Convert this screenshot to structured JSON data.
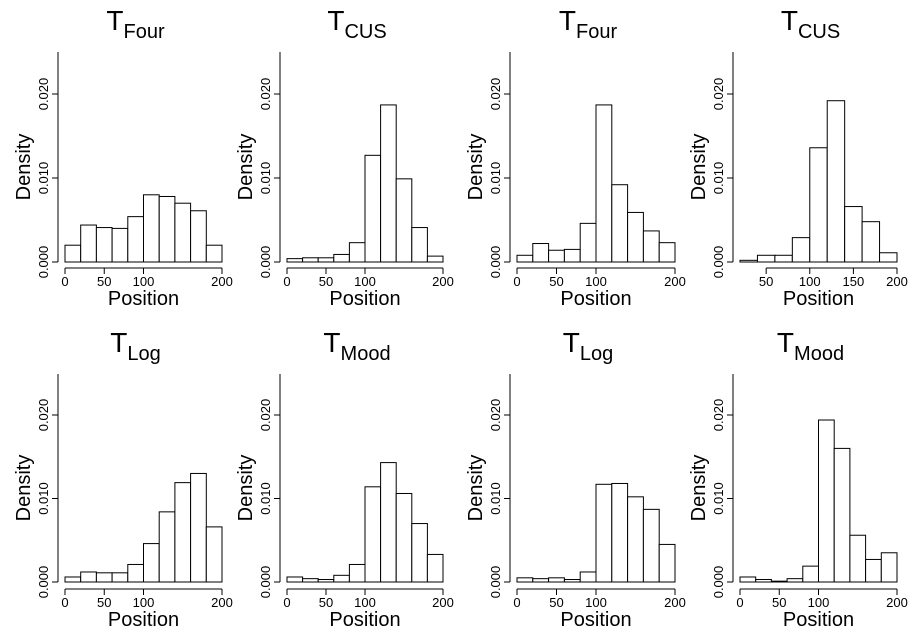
{
  "chart_data": [
    {
      "type": "bar",
      "title": "T",
      "title_subscript": "Four",
      "xlabel": "Position",
      "ylabel": "Density",
      "xlim": [
        0,
        200
      ],
      "ylim": [
        0,
        0.024
      ],
      "xticks": [
        0,
        50,
        100,
        200
      ],
      "yticks": [
        0.0,
        0.01,
        0.02
      ],
      "xtick_labels": [
        "0",
        "50",
        "100",
        "200"
      ],
      "ytick_labels": [
        "0.000",
        "0.010",
        "0.020"
      ],
      "bin_edges": [
        0,
        20,
        40,
        60,
        80,
        100,
        120,
        140,
        160,
        180,
        200
      ],
      "values": [
        0.002,
        0.0044,
        0.0041,
        0.004,
        0.0054,
        0.008,
        0.0078,
        0.007,
        0.0061,
        0.002
      ]
    },
    {
      "type": "bar",
      "title": "T",
      "title_subscript": "CUS",
      "xlabel": "Position",
      "ylabel": "Density",
      "xlim": [
        0,
        200
      ],
      "ylim": [
        0,
        0.024
      ],
      "xticks": [
        0,
        50,
        100,
        200
      ],
      "yticks": [
        0.0,
        0.01,
        0.02
      ],
      "xtick_labels": [
        "0",
        "50",
        "100",
        "200"
      ],
      "ytick_labels": [
        "0.000",
        "0.010",
        "0.020"
      ],
      "bin_edges": [
        0,
        20,
        40,
        60,
        80,
        100,
        120,
        140,
        160,
        180,
        200
      ],
      "values": [
        0.0004,
        0.0005,
        0.0005,
        0.0009,
        0.0023,
        0.0127,
        0.0187,
        0.0099,
        0.0041,
        0.0007
      ]
    },
    {
      "type": "bar",
      "title": "T",
      "title_subscript": "Four",
      "xlabel": "Position",
      "ylabel": "Density",
      "xlim": [
        0,
        200
      ],
      "ylim": [
        0,
        0.024
      ],
      "xticks": [
        0,
        50,
        100,
        200
      ],
      "yticks": [
        0.0,
        0.01,
        0.02
      ],
      "xtick_labels": [
        "0",
        "50",
        "100",
        "200"
      ],
      "ytick_labels": [
        "0.000",
        "0.010",
        "0.020"
      ],
      "bin_edges": [
        0,
        20,
        40,
        60,
        80,
        100,
        120,
        140,
        160,
        180,
        200
      ],
      "values": [
        0.0008,
        0.0022,
        0.0014,
        0.0015,
        0.0046,
        0.0187,
        0.0092,
        0.0059,
        0.0037,
        0.0023
      ]
    },
    {
      "type": "bar",
      "title": "T",
      "title_subscript": "CUS",
      "xlabel": "Position",
      "ylabel": "Density",
      "xlim": [
        20,
        200
      ],
      "ylim": [
        0,
        0.024
      ],
      "xticks": [
        50,
        100,
        150,
        200
      ],
      "yticks": [
        0.0,
        0.01,
        0.02
      ],
      "xtick_labels": [
        "50",
        "100",
        "150",
        "200"
      ],
      "ytick_labels": [
        "0.000",
        "0.010",
        "0.020"
      ],
      "bin_edges": [
        20,
        40,
        60,
        80,
        100,
        120,
        140,
        160,
        180,
        200
      ],
      "values": [
        0.0002,
        0.0008,
        0.0008,
        0.0029,
        0.0136,
        0.0192,
        0.0066,
        0.0048,
        0.0011
      ]
    },
    {
      "type": "bar",
      "title": "T",
      "title_subscript": "Log",
      "xlabel": "Position",
      "ylabel": "Density",
      "xlim": [
        0,
        200
      ],
      "ylim": [
        0,
        0.024
      ],
      "xticks": [
        0,
        50,
        100,
        200
      ],
      "yticks": [
        0.0,
        0.01,
        0.02
      ],
      "xtick_labels": [
        "0",
        "50",
        "100",
        "200"
      ],
      "ytick_labels": [
        "0.000",
        "0.010",
        "0.020"
      ],
      "bin_edges": [
        0,
        20,
        40,
        60,
        80,
        100,
        120,
        140,
        160,
        180,
        200
      ],
      "values": [
        0.0006,
        0.0012,
        0.0011,
        0.0011,
        0.0021,
        0.0046,
        0.0084,
        0.0119,
        0.013,
        0.0066
      ]
    },
    {
      "type": "bar",
      "title": "T",
      "title_subscript": "Mood",
      "xlabel": "Position",
      "ylabel": "Density",
      "xlim": [
        0,
        200
      ],
      "ylim": [
        0,
        0.024
      ],
      "xticks": [
        0,
        50,
        100,
        200
      ],
      "yticks": [
        0.0,
        0.01,
        0.02
      ],
      "xtick_labels": [
        "0",
        "50",
        "100",
        "200"
      ],
      "ytick_labels": [
        "0.000",
        "0.010",
        "0.020"
      ],
      "bin_edges": [
        0,
        20,
        40,
        60,
        80,
        100,
        120,
        140,
        160,
        180,
        200
      ],
      "values": [
        0.0006,
        0.0004,
        0.0003,
        0.0008,
        0.0021,
        0.0114,
        0.0143,
        0.0106,
        0.007,
        0.0033
      ]
    },
    {
      "type": "bar",
      "title": "T",
      "title_subscript": "Log",
      "xlabel": "Position",
      "ylabel": "Density",
      "xlim": [
        0,
        200
      ],
      "ylim": [
        0,
        0.024
      ],
      "xticks": [
        0,
        50,
        100,
        200
      ],
      "yticks": [
        0.0,
        0.01,
        0.02
      ],
      "xtick_labels": [
        "0",
        "50",
        "100",
        "200"
      ],
      "ytick_labels": [
        "0.000",
        "0.010",
        "0.020"
      ],
      "bin_edges": [
        0,
        20,
        40,
        60,
        80,
        100,
        120,
        140,
        160,
        180,
        200
      ],
      "values": [
        0.0005,
        0.0004,
        0.0005,
        0.0003,
        0.0012,
        0.0117,
        0.0118,
        0.0102,
        0.0087,
        0.0045
      ]
    },
    {
      "type": "bar",
      "title": "T",
      "title_subscript": "Mood",
      "xlabel": "Position",
      "ylabel": "Density",
      "xlim": [
        0,
        200
      ],
      "ylim": [
        0,
        0.024
      ],
      "xticks": [
        0,
        50,
        100,
        200
      ],
      "yticks": [
        0.0,
        0.01,
        0.02
      ],
      "xtick_labels": [
        "0",
        "50",
        "100",
        "200"
      ],
      "ytick_labels": [
        "0.000",
        "0.010",
        "0.020"
      ],
      "bin_edges": [
        0,
        20,
        40,
        60,
        80,
        100,
        120,
        140,
        160,
        180,
        200
      ],
      "values": [
        0.0006,
        0.0003,
        0.0001,
        0.0004,
        0.0019,
        0.0194,
        0.016,
        0.0056,
        0.0027,
        0.0035
      ]
    }
  ]
}
